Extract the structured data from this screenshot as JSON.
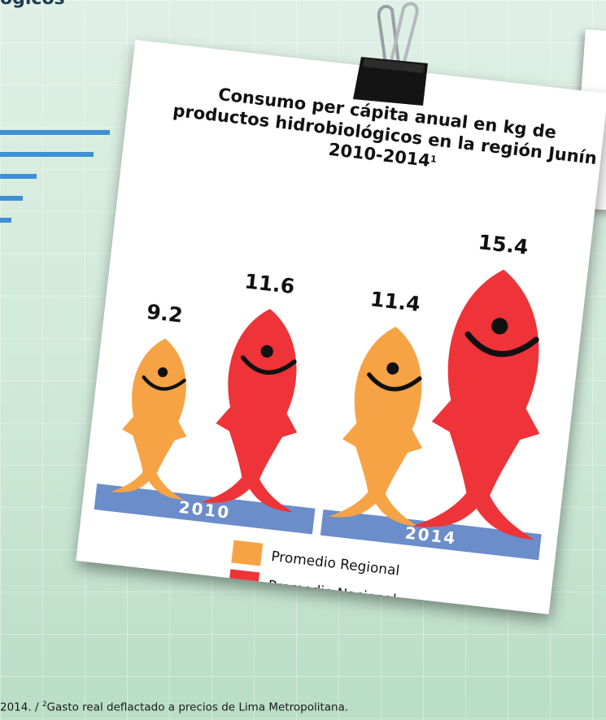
{
  "page": {
    "top_title_fragment": "ógicos",
    "footnote_left": "2014.",
    "footnote_sep": "/",
    "footnote_marker": "2",
    "footnote_text": "Gasto real deflactado a precios de Lima Metropolitana."
  },
  "chart_data": {
    "type": "bar",
    "title_line1": "Consumo per cápita anual en kg de",
    "title_line2": "productos hidrobiológicos en la región Junín",
    "title_line3": "2010-2014",
    "title_marker": "1",
    "categories": [
      "2010",
      "2014"
    ],
    "series": [
      {
        "name": "Promedio Regional",
        "color": "#f6a345",
        "values": [
          9.2,
          11.4
        ]
      },
      {
        "name": "Promedio Nacional",
        "color": "#ee3339",
        "values": [
          11.6,
          15.4
        ]
      }
    ],
    "value_labels": [
      "9.2",
      "11.6",
      "11.4",
      "15.4"
    ],
    "base_color": "#6b8dc9",
    "encoding": "fish icon size proportional to value"
  }
}
